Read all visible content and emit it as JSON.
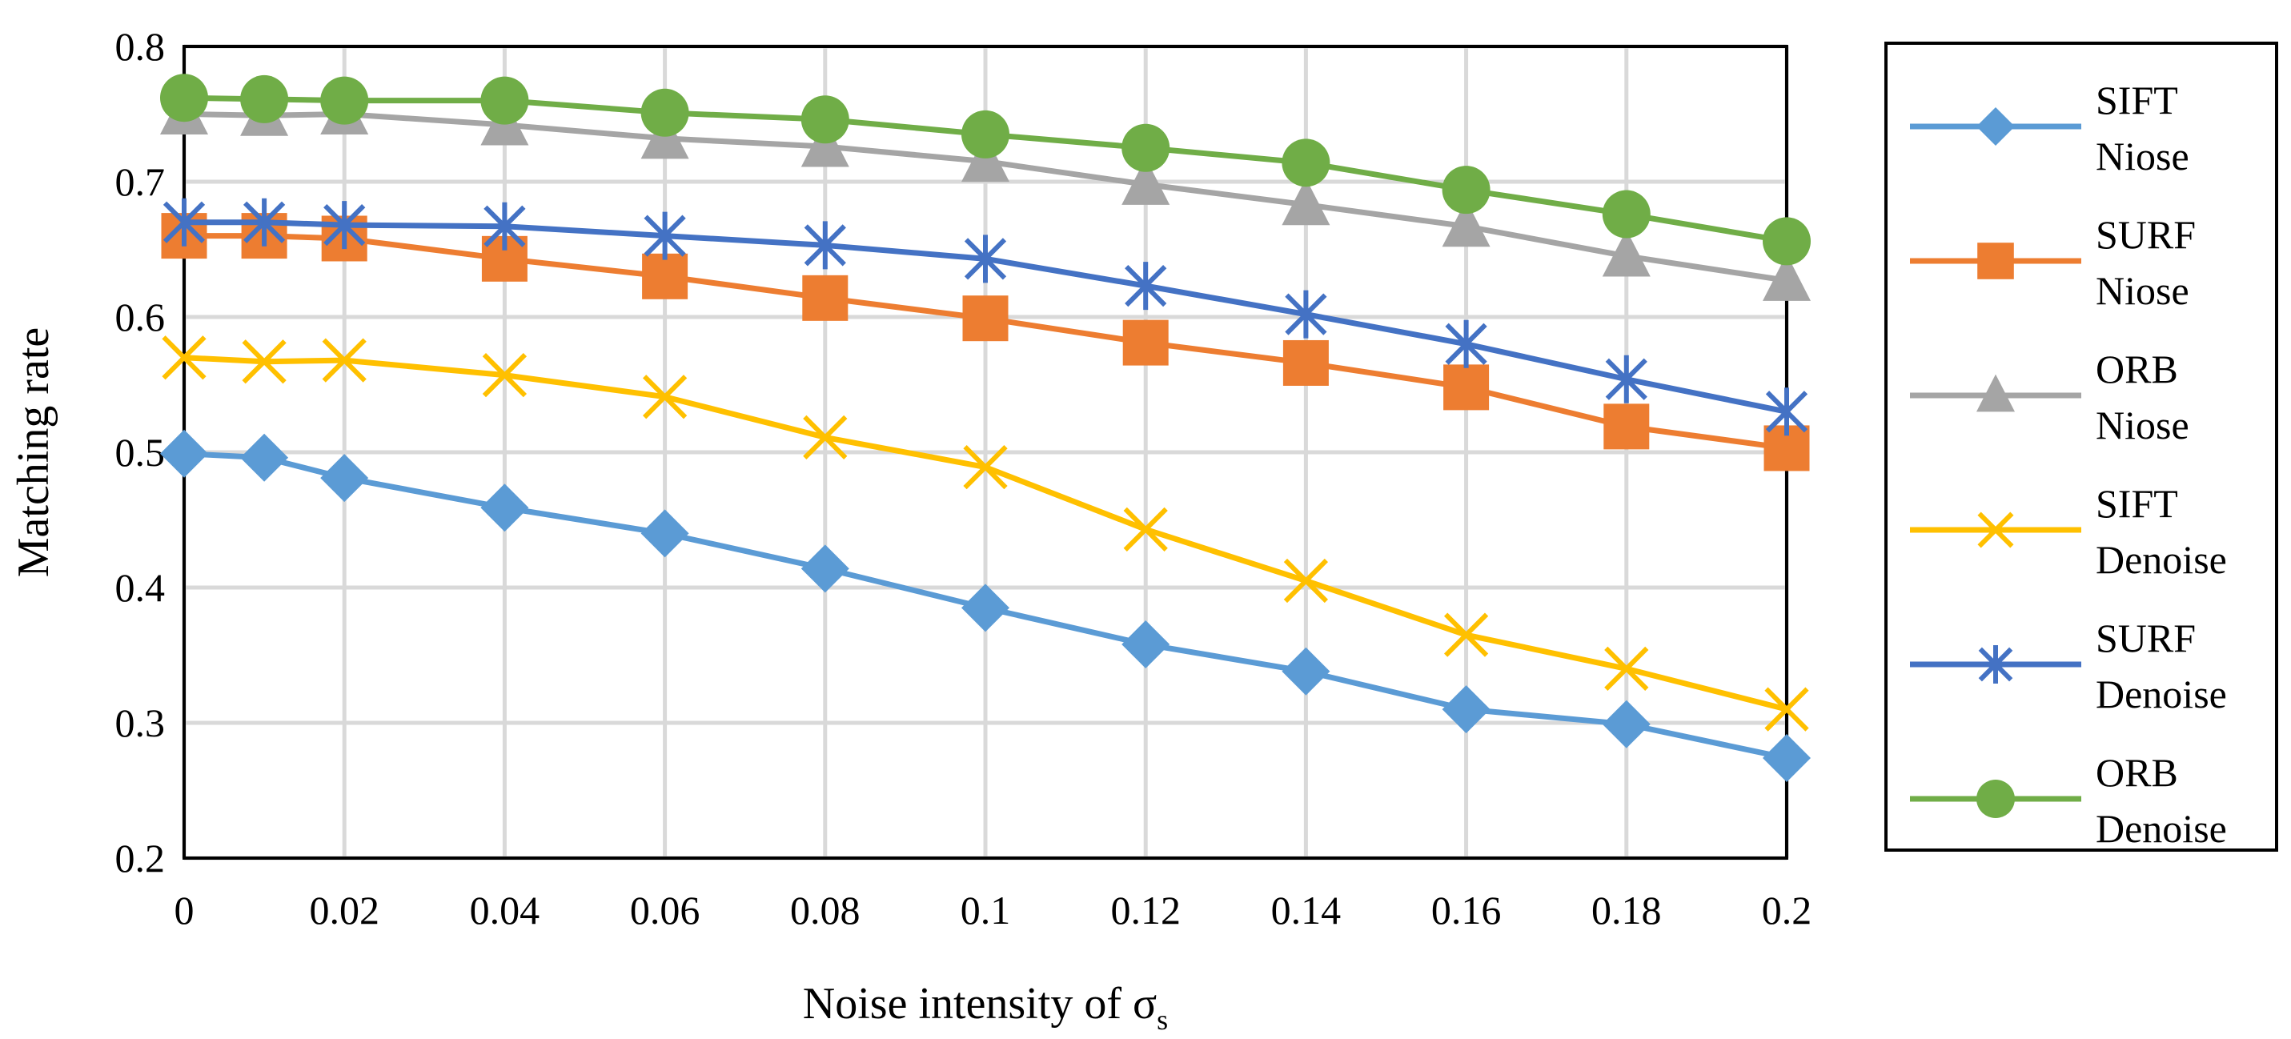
{
  "chart_data": {
    "type": "line",
    "title": "",
    "xlabel": "Noise intensity of σ",
    "xlabel_subscript": "s",
    "ylabel": "Matching rate",
    "x": [
      0,
      0.01,
      0.02,
      0.04,
      0.06,
      0.08,
      0.1,
      0.12,
      0.14,
      0.16,
      0.18,
      0.2
    ],
    "xlim": [
      0,
      0.2
    ],
    "ylim": [
      0.2,
      0.8
    ],
    "x_ticks": [
      "0",
      "0.02",
      "0.04",
      "0.06",
      "0.08",
      "0.1",
      "0.12",
      "0.14",
      "0.16",
      "0.18",
      "0.2"
    ],
    "y_ticks": [
      "0.2",
      "0.3",
      "0.4",
      "0.5",
      "0.6",
      "0.7",
      "0.8"
    ],
    "grid": true,
    "legend_position": "right",
    "series": [
      {
        "name": "SIFT Niose",
        "legend_lines": [
          "SIFT",
          "Niose"
        ],
        "color": "#5B9BD5",
        "marker": "diamond",
        "values": [
          0.499,
          0.496,
          0.481,
          0.459,
          0.44,
          0.414,
          0.385,
          0.358,
          0.338,
          0.31,
          0.299,
          0.274
        ]
      },
      {
        "name": "SURF Niose",
        "legend_lines": [
          "SURF",
          "Niose"
        ],
        "color": "#ED7D31",
        "marker": "square",
        "values": [
          0.66,
          0.66,
          0.658,
          0.643,
          0.63,
          0.614,
          0.599,
          0.581,
          0.566,
          0.548,
          0.519,
          0.503
        ]
      },
      {
        "name": "ORB Niose",
        "legend_lines": [
          "ORB",
          "Niose"
        ],
        "color": "#A5A5A5",
        "marker": "triangle",
        "values": [
          0.75,
          0.749,
          0.75,
          0.742,
          0.732,
          0.726,
          0.715,
          0.698,
          0.683,
          0.667,
          0.645,
          0.627
        ]
      },
      {
        "name": "SIFT Denoise",
        "legend_lines": [
          "SIFT",
          "Denoise"
        ],
        "color": "#FFC000",
        "marker": "x",
        "values": [
          0.57,
          0.567,
          0.568,
          0.557,
          0.541,
          0.511,
          0.489,
          0.443,
          0.405,
          0.365,
          0.34,
          0.31
        ]
      },
      {
        "name": "SURF Denoise",
        "legend_lines": [
          "SURF",
          "Denoise"
        ],
        "color": "#4472C4",
        "marker": "star",
        "values": [
          0.67,
          0.67,
          0.668,
          0.667,
          0.66,
          0.653,
          0.643,
          0.623,
          0.602,
          0.58,
          0.554,
          0.53
        ]
      },
      {
        "name": "ORB Denoise",
        "legend_lines": [
          "ORB",
          "Denoise"
        ],
        "color": "#70AD47",
        "marker": "circle",
        "values": [
          0.762,
          0.761,
          0.76,
          0.76,
          0.751,
          0.746,
          0.735,
          0.725,
          0.714,
          0.694,
          0.676,
          0.656
        ]
      }
    ]
  }
}
